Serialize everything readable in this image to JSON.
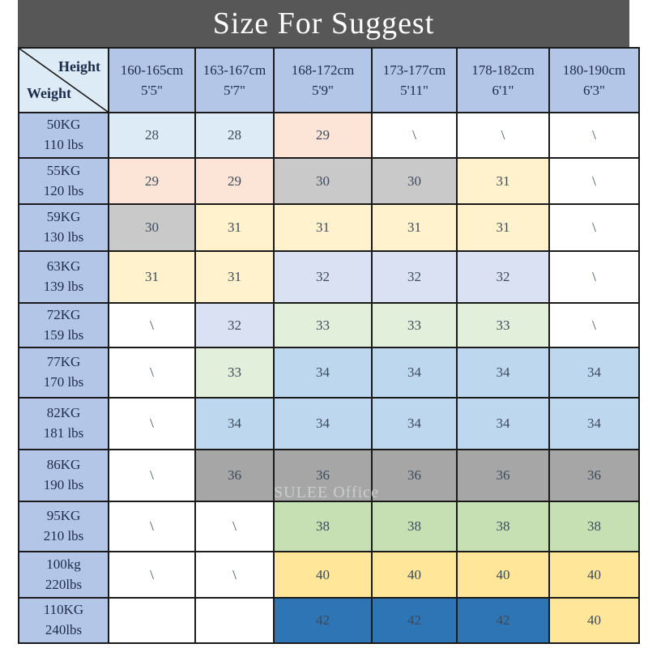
{
  "title": "Size For Suggest",
  "watermark": "SULEE Office",
  "corner": {
    "top_label": "Height",
    "bottom_label": "Weight"
  },
  "palette": {
    "title_bg": "#575757",
    "title_fg": "#ffffff",
    "header_bg": "#b4c6e7",
    "corner_bg": "#ddebf7",
    "grid": "#1a1a1a",
    "header_fg": "#1c2b4a",
    "number_fg": "#3d4a5c",
    "watermark_fg": "#d3d8da",
    "cell_blue_pale": "#ddebf7",
    "cell_peach": "#fce4d6",
    "cell_gray_light": "#c9c9c9",
    "cell_yellow_pale": "#fff2cc",
    "cell_lavender": "#d9e1f2",
    "cell_green_pale": "#e2efda",
    "cell_blue_light": "#bdd7ee",
    "cell_gray_dark": "#a6a6a6",
    "cell_green": "#c6e0b4",
    "cell_gold": "#ffe699",
    "cell_blue_dark": "#2e75b6",
    "cell_white": "#ffffff"
  },
  "columns": [
    {
      "cm": "160-165cm",
      "ft": "5'5\""
    },
    {
      "cm": "163-167cm",
      "ft": "5'7\""
    },
    {
      "cm": "168-172cm",
      "ft": "5'9\""
    },
    {
      "cm": "173-177cm",
      "ft": "5'11\""
    },
    {
      "cm": "178-182cm",
      "ft": "6'1\""
    },
    {
      "cm": "180-190cm",
      "ft": "6'3\""
    }
  ],
  "rows": [
    {
      "kg": "50KG",
      "lbs": "110 lbs",
      "cells": [
        {
          "v": "28",
          "bg": "#ddebf7"
        },
        {
          "v": "28",
          "bg": "#ddebf7"
        },
        {
          "v": "29",
          "bg": "#fce4d6"
        },
        {
          "v": "\\",
          "bg": "#ffffff"
        },
        {
          "v": "\\",
          "bg": "#ffffff"
        },
        {
          "v": "\\",
          "bg": "#ffffff"
        }
      ]
    },
    {
      "kg": "55KG",
      "lbs": "120 lbs",
      "cells": [
        {
          "v": "29",
          "bg": "#fce4d6"
        },
        {
          "v": "29",
          "bg": "#fce4d6"
        },
        {
          "v": "30",
          "bg": "#c9c9c9"
        },
        {
          "v": "30",
          "bg": "#c9c9c9"
        },
        {
          "v": "31",
          "bg": "#fff2cc"
        },
        {
          "v": "\\",
          "bg": "#ffffff"
        }
      ]
    },
    {
      "kg": "59KG",
      "lbs": "130 lbs",
      "cells": [
        {
          "v": "30",
          "bg": "#c9c9c9"
        },
        {
          "v": "31",
          "bg": "#fff2cc"
        },
        {
          "v": "31",
          "bg": "#fff2cc"
        },
        {
          "v": "31",
          "bg": "#fff2cc"
        },
        {
          "v": "31",
          "bg": "#fff2cc"
        },
        {
          "v": "\\",
          "bg": "#ffffff"
        }
      ]
    },
    {
      "kg": "63KG",
      "lbs": "139 lbs",
      "cells": [
        {
          "v": "31",
          "bg": "#fff2cc"
        },
        {
          "v": "31",
          "bg": "#fff2cc"
        },
        {
          "v": "32",
          "bg": "#d9e1f2"
        },
        {
          "v": "32",
          "bg": "#d9e1f2"
        },
        {
          "v": "32",
          "bg": "#d9e1f2"
        },
        {
          "v": "\\",
          "bg": "#ffffff"
        }
      ]
    },
    {
      "kg": "72KG",
      "lbs": "159 lbs",
      "cells": [
        {
          "v": "\\",
          "bg": "#ffffff"
        },
        {
          "v": "32",
          "bg": "#d9e1f2"
        },
        {
          "v": "33",
          "bg": "#e2efda"
        },
        {
          "v": "33",
          "bg": "#e2efda"
        },
        {
          "v": "33",
          "bg": "#e2efda"
        },
        {
          "v": "\\",
          "bg": "#ffffff"
        }
      ]
    },
    {
      "kg": "77KG",
      "lbs": "170 lbs",
      "cells": [
        {
          "v": "\\",
          "bg": "#ffffff"
        },
        {
          "v": "33",
          "bg": "#e2efda"
        },
        {
          "v": "34",
          "bg": "#bdd7ee"
        },
        {
          "v": "34",
          "bg": "#bdd7ee"
        },
        {
          "v": "34",
          "bg": "#bdd7ee"
        },
        {
          "v": "34",
          "bg": "#bdd7ee"
        }
      ]
    },
    {
      "kg": "82KG",
      "lbs": "181 lbs",
      "cells": [
        {
          "v": "\\",
          "bg": "#ffffff"
        },
        {
          "v": "34",
          "bg": "#bdd7ee"
        },
        {
          "v": "34",
          "bg": "#bdd7ee"
        },
        {
          "v": "34",
          "bg": "#bdd7ee"
        },
        {
          "v": "34",
          "bg": "#bdd7ee"
        },
        {
          "v": "34",
          "bg": "#bdd7ee"
        }
      ]
    },
    {
      "kg": "86KG",
      "lbs": "190 lbs",
      "cells": [
        {
          "v": "\\",
          "bg": "#ffffff"
        },
        {
          "v": "36",
          "bg": "#a6a6a6"
        },
        {
          "v": "36",
          "bg": "#a6a6a6"
        },
        {
          "v": "36",
          "bg": "#a6a6a6"
        },
        {
          "v": "36",
          "bg": "#a6a6a6"
        },
        {
          "v": "36",
          "bg": "#a6a6a6"
        }
      ]
    },
    {
      "kg": "95KG",
      "lbs": "210 lbs",
      "cells": [
        {
          "v": "\\",
          "bg": "#ffffff"
        },
        {
          "v": "\\",
          "bg": "#ffffff"
        },
        {
          "v": "38",
          "bg": "#c6e0b4"
        },
        {
          "v": "38",
          "bg": "#c6e0b4"
        },
        {
          "v": "38",
          "bg": "#c6e0b4"
        },
        {
          "v": "38",
          "bg": "#c6e0b4"
        }
      ]
    },
    {
      "kg": "100kg",
      "lbs": "220lbs",
      "cells": [
        {
          "v": "\\",
          "bg": "#ffffff"
        },
        {
          "v": "\\",
          "bg": "#ffffff"
        },
        {
          "v": "40",
          "bg": "#ffe699"
        },
        {
          "v": "40",
          "bg": "#ffe699"
        },
        {
          "v": "40",
          "bg": "#ffe699"
        },
        {
          "v": "40",
          "bg": "#ffe699"
        }
      ]
    },
    {
      "kg": "110KG",
      "lbs": "240lbs",
      "cells": [
        {
          "v": "",
          "bg": "#ffffff"
        },
        {
          "v": "",
          "bg": "#ffffff"
        },
        {
          "v": "42",
          "bg": "#2e75b6"
        },
        {
          "v": "42",
          "bg": "#2e75b6"
        },
        {
          "v": "42",
          "bg": "#2e75b6"
        },
        {
          "v": "40",
          "bg": "#ffe699"
        }
      ]
    }
  ],
  "chart_data": {
    "type": "table",
    "title": "Size For Suggest",
    "col_header": "Height",
    "row_header": "Weight",
    "columns": [
      "160-165cm 5'5\"",
      "163-167cm 5'7\"",
      "168-172cm 5'9\"",
      "173-177cm 5'11\"",
      "178-182cm 6'1\"",
      "180-190cm 6'3\""
    ],
    "rows": [
      "50KG 110 lbs",
      "55KG 120 lbs",
      "59KG 130 lbs",
      "63KG 139 lbs",
      "72KG 159 lbs",
      "77KG 170 lbs",
      "82KG 181 lbs",
      "86KG 190 lbs",
      "95KG 210 lbs",
      "100kg 220lbs",
      "110KG 240lbs"
    ],
    "values": [
      [
        "28",
        "28",
        "29",
        "\\",
        "\\",
        "\\"
      ],
      [
        "29",
        "29",
        "30",
        "30",
        "31",
        "\\"
      ],
      [
        "30",
        "31",
        "31",
        "31",
        "31",
        "\\"
      ],
      [
        "31",
        "31",
        "32",
        "32",
        "32",
        "\\"
      ],
      [
        "\\",
        "32",
        "33",
        "33",
        "33",
        "\\"
      ],
      [
        "\\",
        "33",
        "34",
        "34",
        "34",
        "34"
      ],
      [
        "\\",
        "34",
        "34",
        "34",
        "34",
        "34"
      ],
      [
        "\\",
        "36",
        "36",
        "36",
        "36",
        "36"
      ],
      [
        "\\",
        "\\",
        "38",
        "38",
        "38",
        "38"
      ],
      [
        "\\",
        "\\",
        "40",
        "40",
        "40",
        "40"
      ],
      [
        "",
        "",
        "42",
        "42",
        "42",
        "40"
      ]
    ]
  }
}
